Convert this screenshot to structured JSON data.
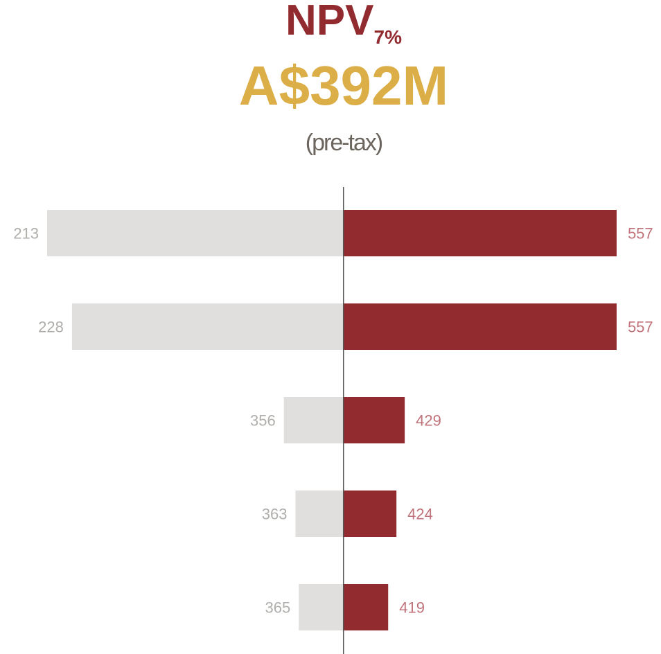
{
  "chart_data": {
    "type": "tornado",
    "title": "NPV",
    "title_subscript": "7%",
    "subtitle": {
      "value": 392,
      "label": "A$392M"
    },
    "note": "(pre-tax)",
    "base": 392,
    "series": [
      {
        "color": "#e0dfdd",
        "label_color": "#b0aeab",
        "values": [
          213,
          228,
          356,
          363,
          365
        ]
      },
      {
        "color": "#922b30",
        "label_color": "#c0737a",
        "values": [
          557,
          557,
          429,
          424,
          419
        ]
      }
    ],
    "xlim": [
      200,
      570
    ]
  }
}
